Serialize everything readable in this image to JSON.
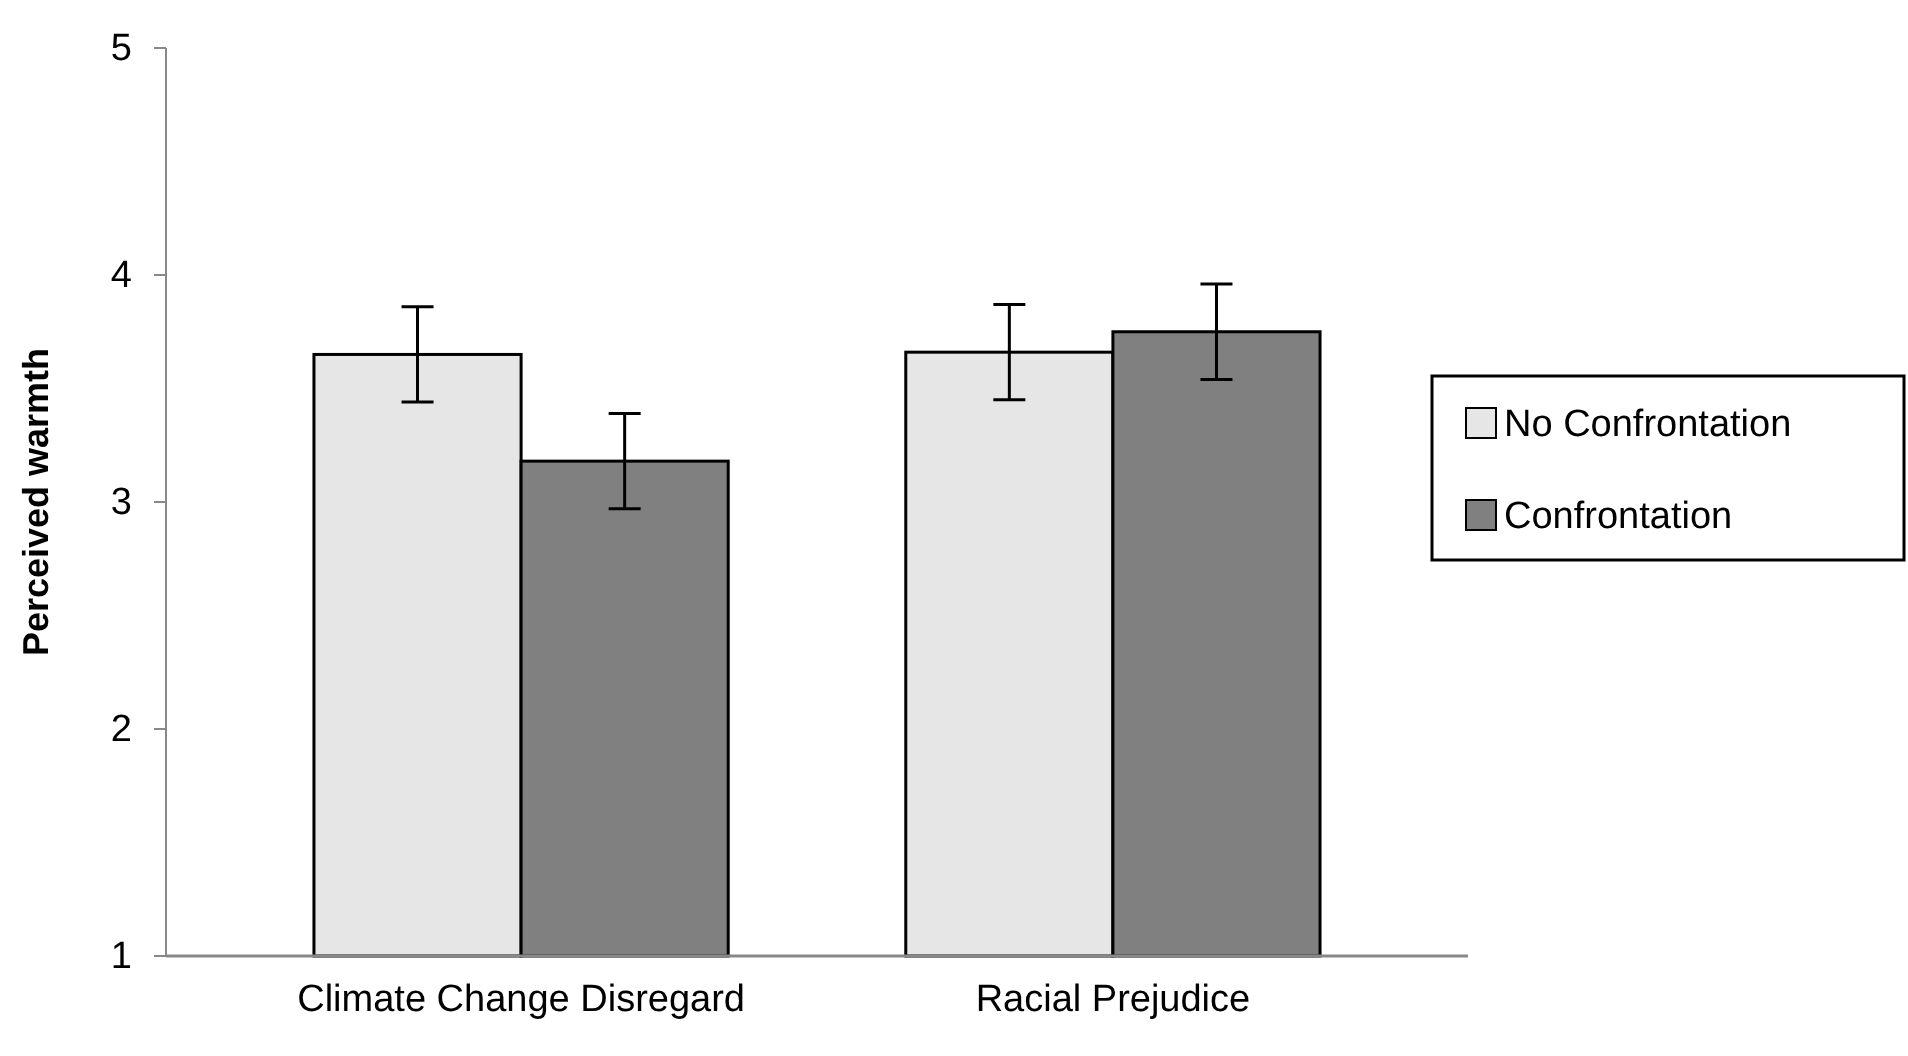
{
  "chart_data": {
    "type": "bar",
    "ylabel": "Perceived warmth",
    "categories": [
      "Climate Change Disregard",
      "Racial Prejudice"
    ],
    "series": [
      {
        "name": "No Confrontation",
        "color": "#e6e6e6",
        "values": [
          3.65,
          3.66
        ],
        "errors": [
          0.21,
          0.21
        ]
      },
      {
        "name": "Confrontation",
        "color": "#808080",
        "values": [
          3.18,
          3.75
        ],
        "errors": [
          0.21,
          0.21
        ]
      }
    ],
    "ylim": [
      1,
      5
    ],
    "yticks": [
      1,
      2,
      3,
      4,
      5
    ],
    "legend": "right"
  }
}
